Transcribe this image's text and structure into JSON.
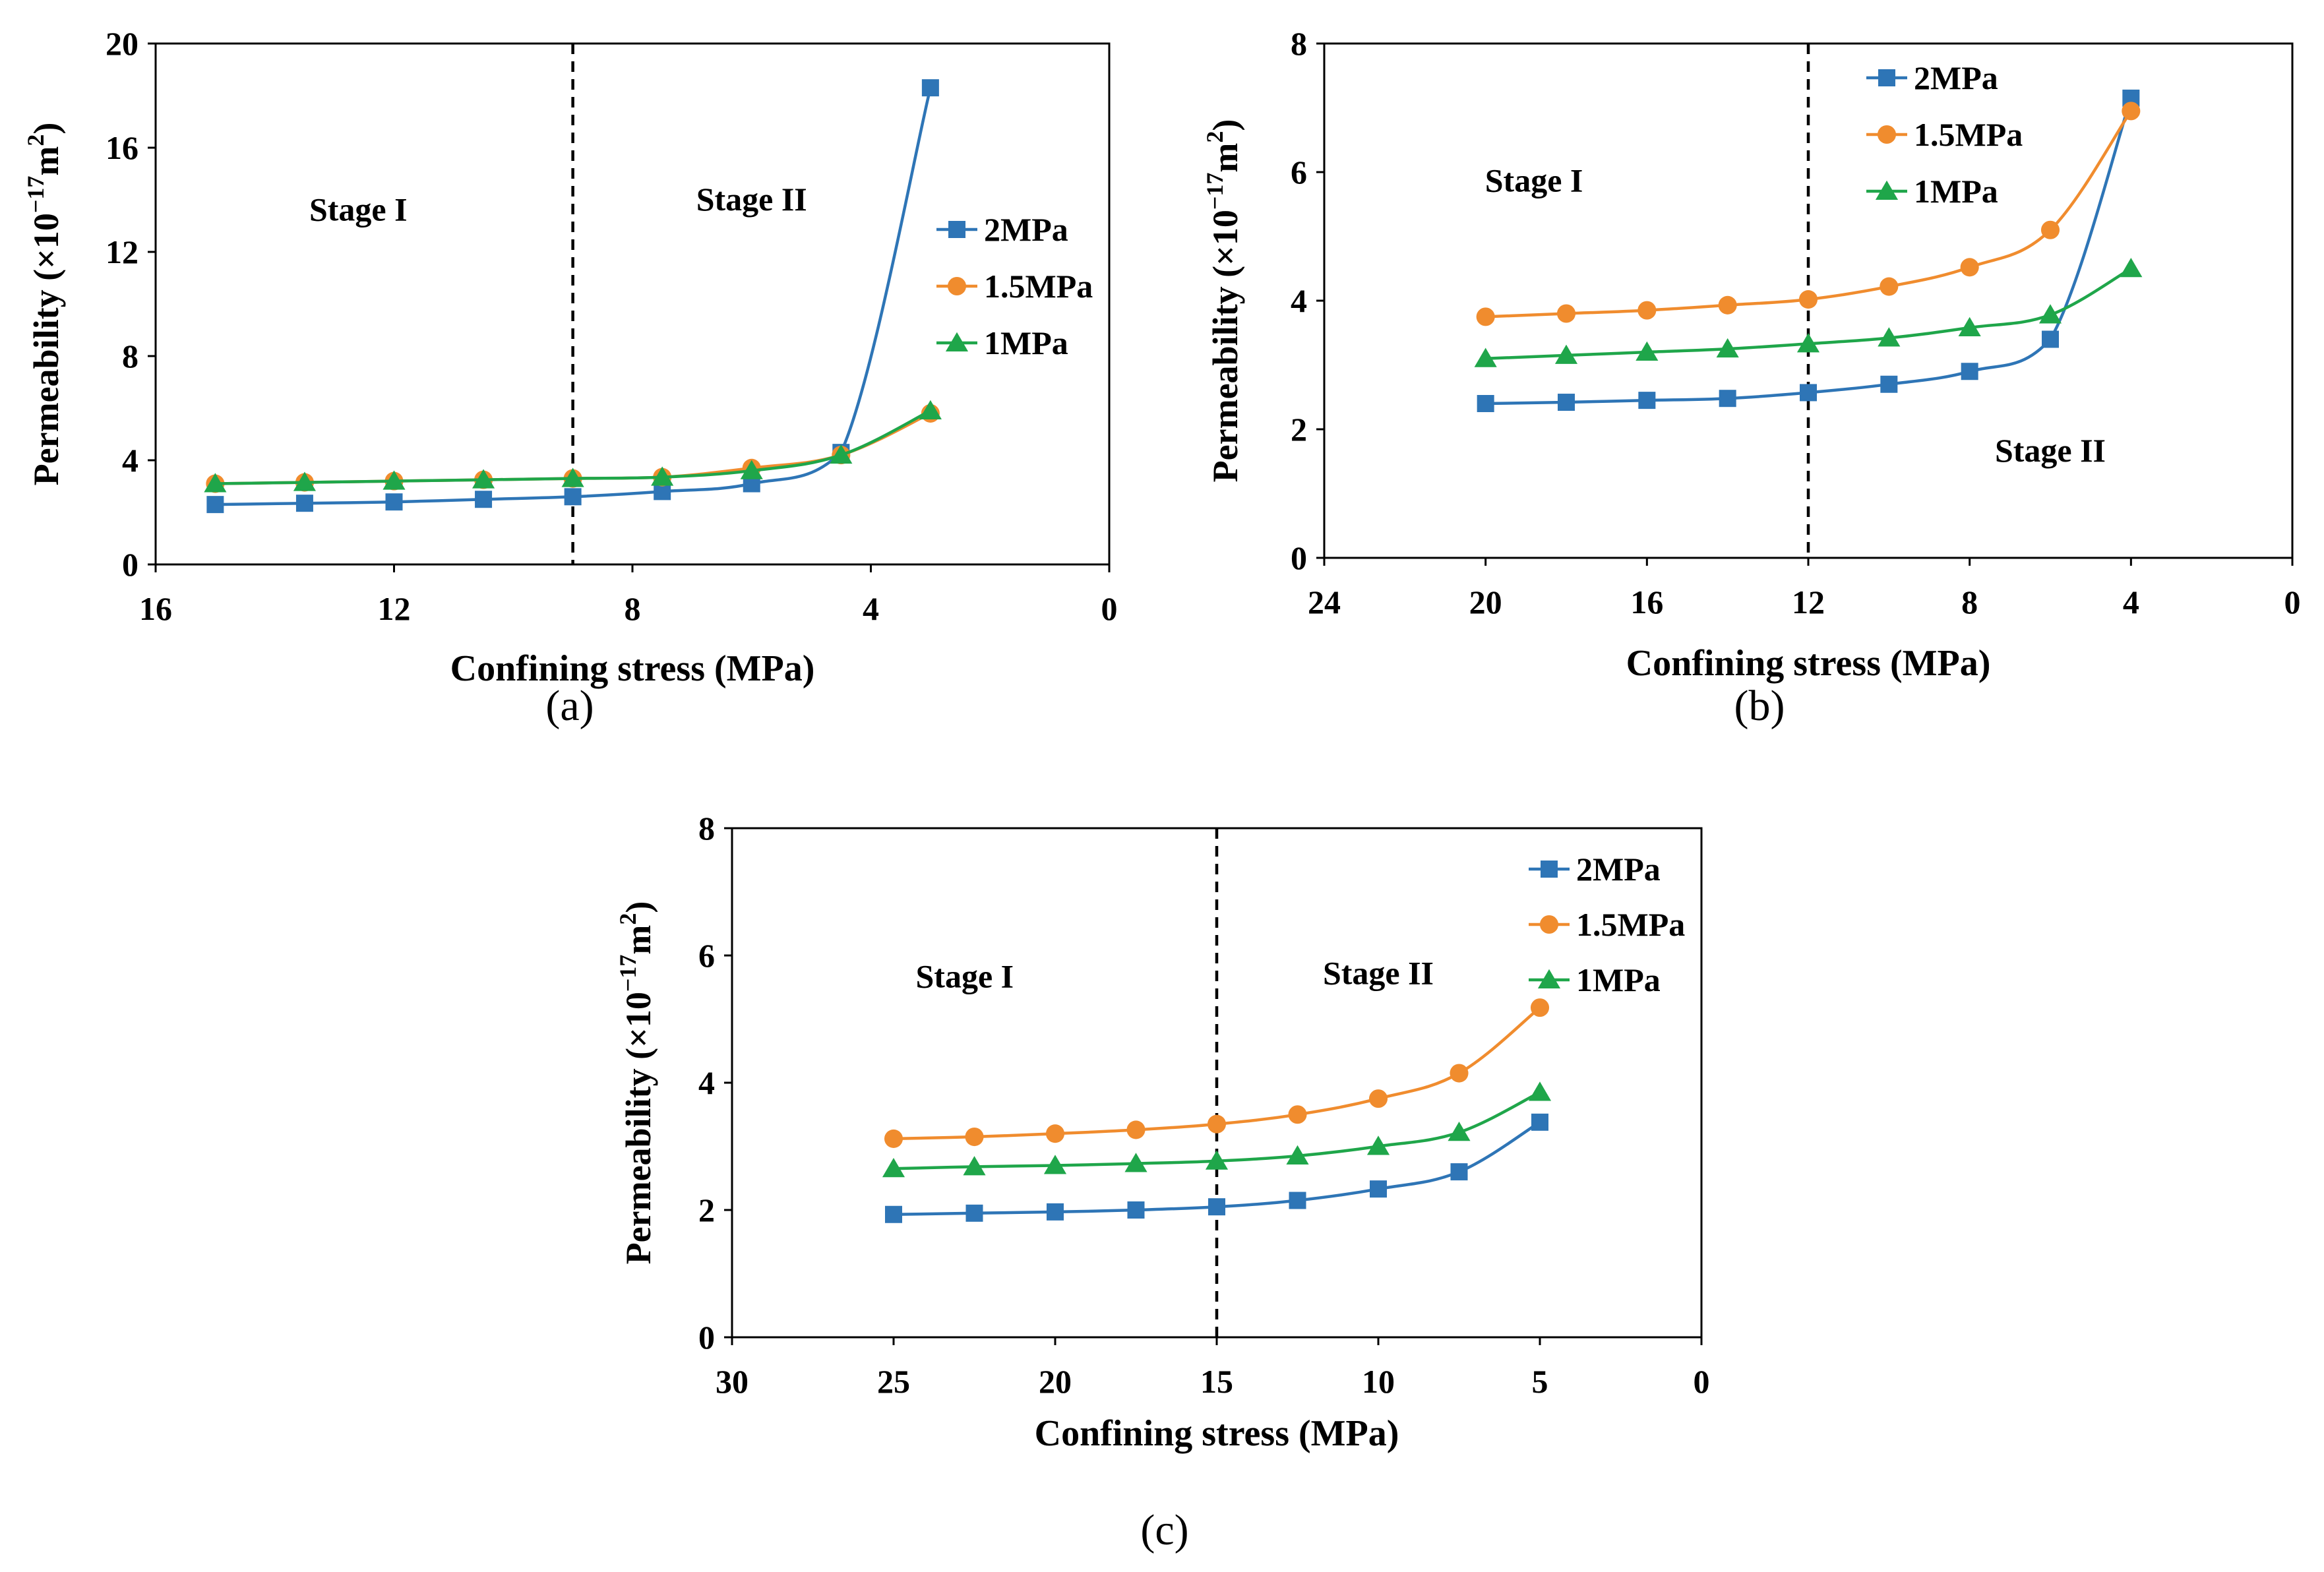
{
  "colors": {
    "s2": "#2E75B6",
    "s15": "#F08C2E",
    "s1": "#1FA64A"
  },
  "chart_data": [
    {
      "type": "line",
      "panel_label": "(a)",
      "xlabel": "Confining stress (MPa)",
      "ylabel_main": "Permeability (×10",
      "ylabel_sup": "−17",
      "ylabel_unit": "m",
      "ylabel_unit_sup": "2",
      "ylabel_close": ")",
      "xlim": [
        16,
        0
      ],
      "ylim": [
        0,
        20
      ],
      "xticks": [
        16,
        12,
        8,
        4,
        0
      ],
      "yticks": [
        0,
        4,
        8,
        12,
        16,
        20
      ],
      "divider_x": 9,
      "stage_labels": [
        {
          "text": "Stage I",
          "x": 12.6,
          "y": 13.2
        },
        {
          "text": "Stage II",
          "x": 6.0,
          "y": 13.6
        }
      ],
      "legend_position": "right",
      "series": [
        {
          "name": "2MPa",
          "color_key": "s2",
          "marker": "square",
          "x": [
            15,
            13.5,
            12,
            10.5,
            9,
            7.5,
            6,
            4.5,
            3
          ],
          "y": [
            2.3,
            2.35,
            2.4,
            2.5,
            2.6,
            2.8,
            3.1,
            4.3,
            18.3
          ]
        },
        {
          "name": "1.5MPa",
          "color_key": "s15",
          "marker": "circle",
          "x": [
            15,
            13.5,
            12,
            10.5,
            9,
            7.5,
            6,
            4.5,
            3
          ],
          "y": [
            3.1,
            3.15,
            3.2,
            3.25,
            3.3,
            3.35,
            3.7,
            4.2,
            5.8
          ]
        },
        {
          "name": "1MPa",
          "color_key": "s1",
          "marker": "triangle",
          "x": [
            15,
            13.5,
            12,
            10.5,
            9,
            7.5,
            6,
            4.5,
            3
          ],
          "y": [
            3.1,
            3.15,
            3.2,
            3.25,
            3.3,
            3.35,
            3.6,
            4.2,
            5.9
          ]
        }
      ]
    },
    {
      "type": "line",
      "panel_label": "(b)",
      "xlabel": "Confining stress (MPa)",
      "ylabel_main": "Permeability (×10",
      "ylabel_sup": "−17",
      "ylabel_unit": "m",
      "ylabel_unit_sup": "2",
      "ylabel_close": ")",
      "xlim": [
        24,
        0
      ],
      "ylim": [
        0,
        8
      ],
      "xticks": [
        24,
        20,
        16,
        12,
        8,
        4,
        0
      ],
      "yticks": [
        0,
        2,
        4,
        6,
        8
      ],
      "divider_x": 12,
      "stage_labels": [
        {
          "text": "Stage I",
          "x": 18.8,
          "y": 5.7
        },
        {
          "text": "Stage II",
          "x": 6.0,
          "y": 1.5
        }
      ],
      "legend_position": "top-right",
      "series": [
        {
          "name": "2MPa",
          "color_key": "s2",
          "marker": "square",
          "x": [
            20,
            18,
            16,
            14,
            12,
            10,
            8,
            6,
            4
          ],
          "y": [
            2.4,
            2.42,
            2.45,
            2.48,
            2.57,
            2.7,
            2.9,
            3.4,
            7.15
          ]
        },
        {
          "name": "1.5MPa",
          "color_key": "s15",
          "marker": "circle",
          "x": [
            20,
            18,
            16,
            14,
            12,
            10,
            8,
            6,
            4
          ],
          "y": [
            3.75,
            3.8,
            3.85,
            3.93,
            4.02,
            4.22,
            4.52,
            5.1,
            6.95
          ]
        },
        {
          "name": "1MPa",
          "color_key": "s1",
          "marker": "triangle",
          "x": [
            20,
            18,
            16,
            14,
            12,
            10,
            8,
            6,
            4
          ],
          "y": [
            3.1,
            3.15,
            3.2,
            3.25,
            3.33,
            3.42,
            3.58,
            3.78,
            4.5
          ]
        }
      ]
    },
    {
      "type": "line",
      "panel_label": "(c)",
      "xlabel": "Confining stress (MPa)",
      "ylabel_main": "Permeability (×10",
      "ylabel_sup": "−17",
      "ylabel_unit": "m",
      "ylabel_unit_sup": "2",
      "ylabel_close": ")",
      "xlim": [
        30,
        0
      ],
      "ylim": [
        0,
        8
      ],
      "xticks": [
        30,
        25,
        20,
        15,
        10,
        5,
        0
      ],
      "yticks": [
        0,
        2,
        4,
        6,
        8
      ],
      "divider_x": 15,
      "stage_labels": [
        {
          "text": "Stage I",
          "x": 22.8,
          "y": 5.5
        },
        {
          "text": "Stage II",
          "x": 10.0,
          "y": 5.55
        }
      ],
      "legend_position": "top-right",
      "series": [
        {
          "name": "2MPa",
          "color_key": "s2",
          "marker": "square",
          "x": [
            25,
            22.5,
            20,
            17.5,
            15,
            12.5,
            10,
            7.5,
            5
          ],
          "y": [
            1.93,
            1.95,
            1.97,
            2.0,
            2.05,
            2.15,
            2.33,
            2.6,
            3.38
          ]
        },
        {
          "name": "1.5MPa",
          "color_key": "s15",
          "marker": "circle",
          "x": [
            25,
            22.5,
            20,
            17.5,
            15,
            12.5,
            10,
            7.5,
            5
          ],
          "y": [
            3.12,
            3.15,
            3.2,
            3.26,
            3.35,
            3.5,
            3.75,
            4.15,
            5.18
          ]
        },
        {
          "name": "1MPa",
          "color_key": "s1",
          "marker": "triangle",
          "x": [
            25,
            22.5,
            20,
            17.5,
            15,
            12.5,
            10,
            7.5,
            5
          ],
          "y": [
            2.65,
            2.68,
            2.7,
            2.73,
            2.77,
            2.85,
            3.0,
            3.22,
            3.85
          ]
        }
      ]
    }
  ]
}
